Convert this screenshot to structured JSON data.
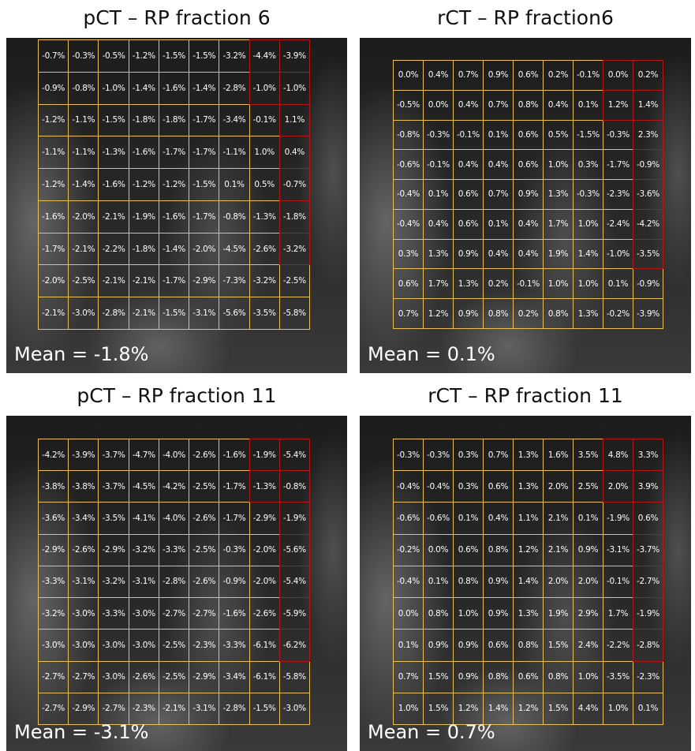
{
  "panels": [
    {
      "title": "pCT – RP fraction 6",
      "mean": "Mean = -1.8%",
      "grid": [
        [
          "-0.7%",
          "-0.3%",
          "-0.5%",
          "-1.2%",
          "-1.5%",
          "-1.5%",
          "-3.2%",
          "-4.4%",
          "-3.9%"
        ],
        [
          "-0.9%",
          "-0.8%",
          "-1.0%",
          "-1.4%",
          "-1.6%",
          "-1.4%",
          "-2.8%",
          "-1.0%",
          "-1.0%"
        ],
        [
          "-1.2%",
          "-1.1%",
          "-1.5%",
          "-1.8%",
          "-1.8%",
          "-1.7%",
          "-3.4%",
          "-0.1%",
          "1.1%"
        ],
        [
          "-1.1%",
          "-1.1%",
          "-1.3%",
          "-1.6%",
          "-1.7%",
          "-1.7%",
          "-1.1%",
          "1.0%",
          "0.4%"
        ],
        [
          "-1.2%",
          "-1.4%",
          "-1.6%",
          "-1.2%",
          "-1.2%",
          "-1.5%",
          "0.1%",
          "0.5%",
          "-0.7%"
        ],
        [
          "-1.6%",
          "-2.0%",
          "-2.1%",
          "-1.9%",
          "-1.6%",
          "-1.7%",
          "-0.8%",
          "-1.3%",
          "-1.8%"
        ],
        [
          "-1.7%",
          "-2.1%",
          "-2.2%",
          "-1.8%",
          "-1.4%",
          "-2.0%",
          "-4.5%",
          "-2.6%",
          "-3.2%"
        ],
        [
          "-2.0%",
          "-2.5%",
          "-2.1%",
          "-2.1%",
          "-1.7%",
          "-2.9%",
          "-7.3%",
          "-3.2%",
          "-2.5%"
        ],
        [
          "-2.1%",
          "-3.0%",
          "-2.8%",
          "-2.1%",
          "-1.5%",
          "-3.1%",
          "-5.6%",
          "-3.5%",
          "-5.8%"
        ]
      ]
    },
    {
      "title": "rCT – RP fraction6",
      "mean": "Mean = 0.1%",
      "grid": [
        [
          "0.0%",
          "0.4%",
          "0.7%",
          "0.9%",
          "0.6%",
          "0.2%",
          "-0.1%",
          "0.0%",
          "0.2%"
        ],
        [
          "-0.5%",
          "0.0%",
          "0.4%",
          "0.7%",
          "0.8%",
          "0.4%",
          "0.1%",
          "1.2%",
          "1.4%"
        ],
        [
          "-0.8%",
          "-0.3%",
          "-0.1%",
          "0.1%",
          "0.6%",
          "0.5%",
          "-1.5%",
          "-0.3%",
          "2.3%"
        ],
        [
          "-0.6%",
          "-0.1%",
          "0.4%",
          "0.4%",
          "0.6%",
          "1.0%",
          "0.3%",
          "-1.7%",
          "-0.9%"
        ],
        [
          "-0.4%",
          "0.1%",
          "0.6%",
          "0.7%",
          "0.9%",
          "1.3%",
          "-0.3%",
          "-2.3%",
          "-3.6%"
        ],
        [
          "-0.4%",
          "0.4%",
          "0.6%",
          "0.1%",
          "0.4%",
          "1.7%",
          "1.0%",
          "-2.4%",
          "-4.2%"
        ],
        [
          "0.3%",
          "1.3%",
          "0.9%",
          "0.4%",
          "0.4%",
          "1.9%",
          "1.4%",
          "-1.0%",
          "-3.5%"
        ],
        [
          "0.6%",
          "1.7%",
          "1.3%",
          "0.2%",
          "-0.1%",
          "1.0%",
          "1.0%",
          "0.1%",
          "-0.9%"
        ],
        [
          "0.7%",
          "1.2%",
          "0.9%",
          "0.8%",
          "0.2%",
          "0.8%",
          "1.3%",
          "-0.2%",
          "-3.9%"
        ]
      ]
    },
    {
      "title": "pCT – RP fraction 11",
      "mean": "Mean = -3.1%",
      "grid": [
        [
          "-4.2%",
          "-3.9%",
          "-3.7%",
          "-4.7%",
          "-4.0%",
          "-2.6%",
          "-1.6%",
          "-1.9%",
          "-5.4%"
        ],
        [
          "-3.8%",
          "-3.8%",
          "-3.7%",
          "-4.5%",
          "-4.2%",
          "-2.5%",
          "-1.7%",
          "-1.3%",
          "-0.8%"
        ],
        [
          "-3.6%",
          "-3.4%",
          "-3.5%",
          "-4.1%",
          "-4.0%",
          "-2.6%",
          "-1.7%",
          "-2.9%",
          "-1.9%"
        ],
        [
          "-2.9%",
          "-2.6%",
          "-2.9%",
          "-3.2%",
          "-3.3%",
          "-2.5%",
          "-0.3%",
          "-2.0%",
          "-5.6%"
        ],
        [
          "-3.3%",
          "-3.1%",
          "-3.2%",
          "-3.1%",
          "-2.8%",
          "-2.6%",
          "-0.9%",
          "-2.0%",
          "-5.4%"
        ],
        [
          "-3.2%",
          "-3.0%",
          "-3.3%",
          "-3.0%",
          "-2.7%",
          "-2.7%",
          "-1.6%",
          "-2.6%",
          "-5.9%"
        ],
        [
          "-3.0%",
          "-3.0%",
          "-3.0%",
          "-3.0%",
          "-2.5%",
          "-2.3%",
          "-3.3%",
          "-6.1%",
          "-6.2%"
        ],
        [
          "-2.7%",
          "-2.7%",
          "-3.0%",
          "-2.6%",
          "-2.5%",
          "-2.9%",
          "-3.4%",
          "-6.1%",
          "-5.8%"
        ],
        [
          "-2.7%",
          "-2.9%",
          "-2.7%",
          "-2.3%",
          "-2.1%",
          "-3.1%",
          "-2.8%",
          "-1.5%",
          "-3.0%"
        ]
      ]
    },
    {
      "title": "rCT – RP fraction 11",
      "mean": "Mean = 0.7%",
      "grid": [
        [
          "-0.3%",
          "-0.3%",
          "0.3%",
          "0.7%",
          "1.3%",
          "1.6%",
          "3.5%",
          "4.8%",
          "3.3%"
        ],
        [
          "-0.4%",
          "-0.4%",
          "0.3%",
          "0.6%",
          "1.3%",
          "2.0%",
          "2.5%",
          "2.0%",
          "3.9%"
        ],
        [
          "-0.6%",
          "-0.6%",
          "0.1%",
          "0.4%",
          "1.1%",
          "2.1%",
          "0.1%",
          "-1.9%",
          "0.6%"
        ],
        [
          "-0.2%",
          "0.0%",
          "0.6%",
          "0.8%",
          "1.2%",
          "2.1%",
          "0.9%",
          "-3.1%",
          "-3.7%"
        ],
        [
          "-0.4%",
          "0.1%",
          "0.8%",
          "0.9%",
          "1.4%",
          "2.0%",
          "2.0%",
          "-0.1%",
          "-2.7%"
        ],
        [
          "0.0%",
          "0.8%",
          "1.0%",
          "0.9%",
          "1.3%",
          "1.9%",
          "2.9%",
          "1.7%",
          "-1.9%"
        ],
        [
          "0.1%",
          "0.9%",
          "0.9%",
          "0.6%",
          "0.8%",
          "1.5%",
          "2.4%",
          "-2.2%",
          "-2.8%"
        ],
        [
          "0.7%",
          "1.5%",
          "0.9%",
          "0.8%",
          "0.6%",
          "0.8%",
          "1.0%",
          "-3.5%",
          "-2.3%"
        ],
        [
          "1.0%",
          "1.5%",
          "1.2%",
          "1.4%",
          "1.2%",
          "1.5%",
          "4.4%",
          "1.0%",
          "0.1%"
        ]
      ]
    }
  ]
}
